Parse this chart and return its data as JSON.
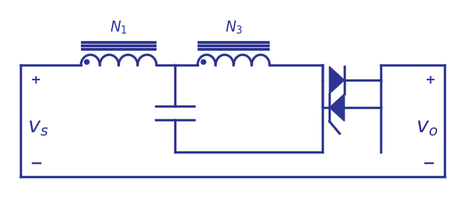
{
  "color": "#2d3491",
  "bg_color": "#ffffff",
  "lw": 2.5,
  "fig_width": 6.85,
  "fig_height": 2.92,
  "label_N1": "$N_1$",
  "label_N3": "$N_3$",
  "label_vs": "$v_s$",
  "label_vo": "$v_o$"
}
